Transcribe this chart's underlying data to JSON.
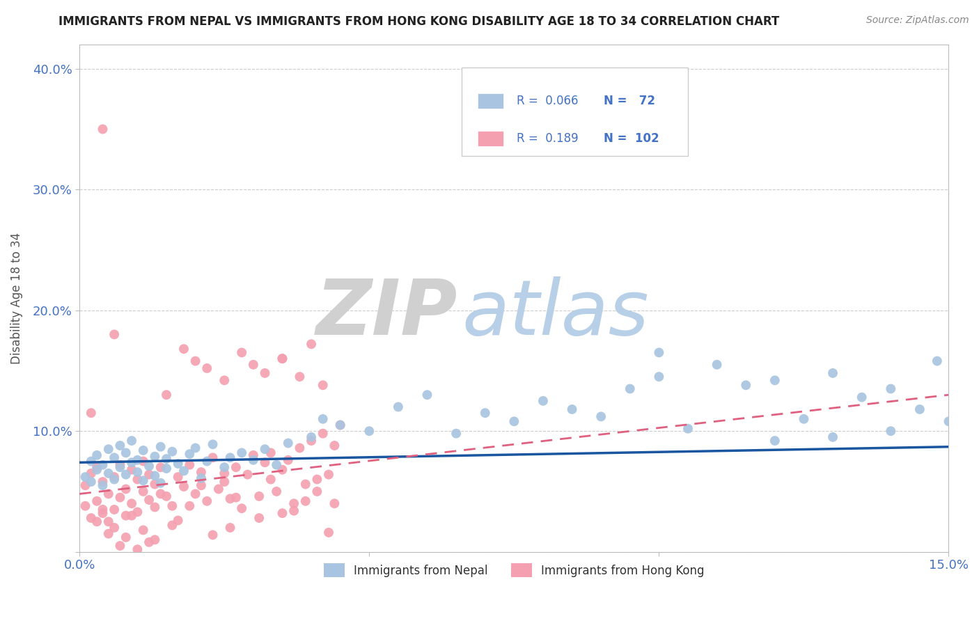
{
  "title": "IMMIGRANTS FROM NEPAL VS IMMIGRANTS FROM HONG KONG DISABILITY AGE 18 TO 34 CORRELATION CHART",
  "source": "Source: ZipAtlas.com",
  "ylabel": "Disability Age 18 to 34",
  "xlim": [
    0.0,
    0.15
  ],
  "ylim": [
    0.0,
    0.42
  ],
  "nepal_color": "#a8c4e0",
  "hk_color": "#f4a0b0",
  "nepal_line_color": "#1a56a0",
  "hk_line_color": "#e06080",
  "tick_color": "#4472c4",
  "axis_label_color": "#555555",
  "watermark_zip_color": "#d0d0d0",
  "watermark_atlas_color": "#b8cfe8",
  "nepal_scatter_x": [
    0.001,
    0.002,
    0.002,
    0.003,
    0.003,
    0.004,
    0.004,
    0.005,
    0.005,
    0.006,
    0.006,
    0.007,
    0.007,
    0.008,
    0.008,
    0.009,
    0.009,
    0.01,
    0.01,
    0.011,
    0.011,
    0.012,
    0.013,
    0.013,
    0.014,
    0.014,
    0.015,
    0.015,
    0.016,
    0.017,
    0.018,
    0.019,
    0.02,
    0.021,
    0.022,
    0.023,
    0.025,
    0.026,
    0.028,
    0.03,
    0.032,
    0.034,
    0.036,
    0.04,
    0.042,
    0.045,
    0.05,
    0.055,
    0.06,
    0.065,
    0.07,
    0.075,
    0.08,
    0.085,
    0.09,
    0.095,
    0.1,
    0.105,
    0.11,
    0.115,
    0.12,
    0.125,
    0.13,
    0.135,
    0.14,
    0.145,
    0.15,
    0.1,
    0.12,
    0.13,
    0.14,
    0.148
  ],
  "nepal_scatter_y": [
    0.062,
    0.058,
    0.075,
    0.068,
    0.08,
    0.055,
    0.072,
    0.065,
    0.085,
    0.06,
    0.078,
    0.07,
    0.088,
    0.064,
    0.082,
    0.074,
    0.092,
    0.066,
    0.076,
    0.059,
    0.084,
    0.071,
    0.063,
    0.079,
    0.057,
    0.087,
    0.069,
    0.077,
    0.083,
    0.073,
    0.067,
    0.081,
    0.086,
    0.061,
    0.075,
    0.089,
    0.07,
    0.078,
    0.082,
    0.076,
    0.085,
    0.072,
    0.09,
    0.095,
    0.11,
    0.105,
    0.1,
    0.12,
    0.13,
    0.098,
    0.115,
    0.108,
    0.125,
    0.118,
    0.112,
    0.135,
    0.145,
    0.102,
    0.155,
    0.138,
    0.092,
    0.11,
    0.095,
    0.128,
    0.1,
    0.118,
    0.108,
    0.165,
    0.142,
    0.148,
    0.135,
    0.158
  ],
  "hk_scatter_x": [
    0.001,
    0.001,
    0.002,
    0.002,
    0.003,
    0.003,
    0.004,
    0.004,
    0.005,
    0.005,
    0.006,
    0.006,
    0.007,
    0.007,
    0.008,
    0.008,
    0.009,
    0.009,
    0.01,
    0.01,
    0.011,
    0.011,
    0.012,
    0.012,
    0.013,
    0.013,
    0.014,
    0.015,
    0.016,
    0.017,
    0.018,
    0.019,
    0.02,
    0.021,
    0.022,
    0.023,
    0.024,
    0.025,
    0.026,
    0.027,
    0.028,
    0.029,
    0.03,
    0.031,
    0.032,
    0.033,
    0.034,
    0.035,
    0.036,
    0.037,
    0.038,
    0.039,
    0.04,
    0.041,
    0.042,
    0.043,
    0.044,
    0.045,
    0.03,
    0.032,
    0.035,
    0.038,
    0.04,
    0.042,
    0.018,
    0.022,
    0.025,
    0.028,
    0.015,
    0.02,
    0.01,
    0.012,
    0.008,
    0.006,
    0.004,
    0.003,
    0.005,
    0.007,
    0.009,
    0.011,
    0.013,
    0.016,
    0.019,
    0.023,
    0.027,
    0.031,
    0.035,
    0.039,
    0.043,
    0.014,
    0.017,
    0.021,
    0.026,
    0.033,
    0.037,
    0.041,
    0.044,
    0.002,
    0.004,
    0.006,
    0.025,
    0.035
  ],
  "hk_scatter_y": [
    0.038,
    0.055,
    0.028,
    0.065,
    0.042,
    0.07,
    0.032,
    0.058,
    0.025,
    0.048,
    0.035,
    0.062,
    0.045,
    0.072,
    0.03,
    0.052,
    0.04,
    0.068,
    0.033,
    0.06,
    0.05,
    0.075,
    0.043,
    0.064,
    0.037,
    0.056,
    0.07,
    0.046,
    0.038,
    0.062,
    0.054,
    0.072,
    0.048,
    0.066,
    0.042,
    0.078,
    0.052,
    0.058,
    0.044,
    0.07,
    0.036,
    0.064,
    0.08,
    0.046,
    0.074,
    0.082,
    0.05,
    0.068,
    0.076,
    0.04,
    0.086,
    0.056,
    0.092,
    0.06,
    0.098,
    0.064,
    0.088,
    0.105,
    0.155,
    0.148,
    0.16,
    0.145,
    0.172,
    0.138,
    0.168,
    0.152,
    0.142,
    0.165,
    0.13,
    0.158,
    0.002,
    0.008,
    0.012,
    0.02,
    0.035,
    0.025,
    0.015,
    0.005,
    0.03,
    0.018,
    0.01,
    0.022,
    0.038,
    0.014,
    0.045,
    0.028,
    0.032,
    0.042,
    0.016,
    0.048,
    0.026,
    0.055,
    0.02,
    0.06,
    0.034,
    0.05,
    0.04,
    0.115,
    0.35,
    0.18,
    0.065,
    0.16
  ]
}
